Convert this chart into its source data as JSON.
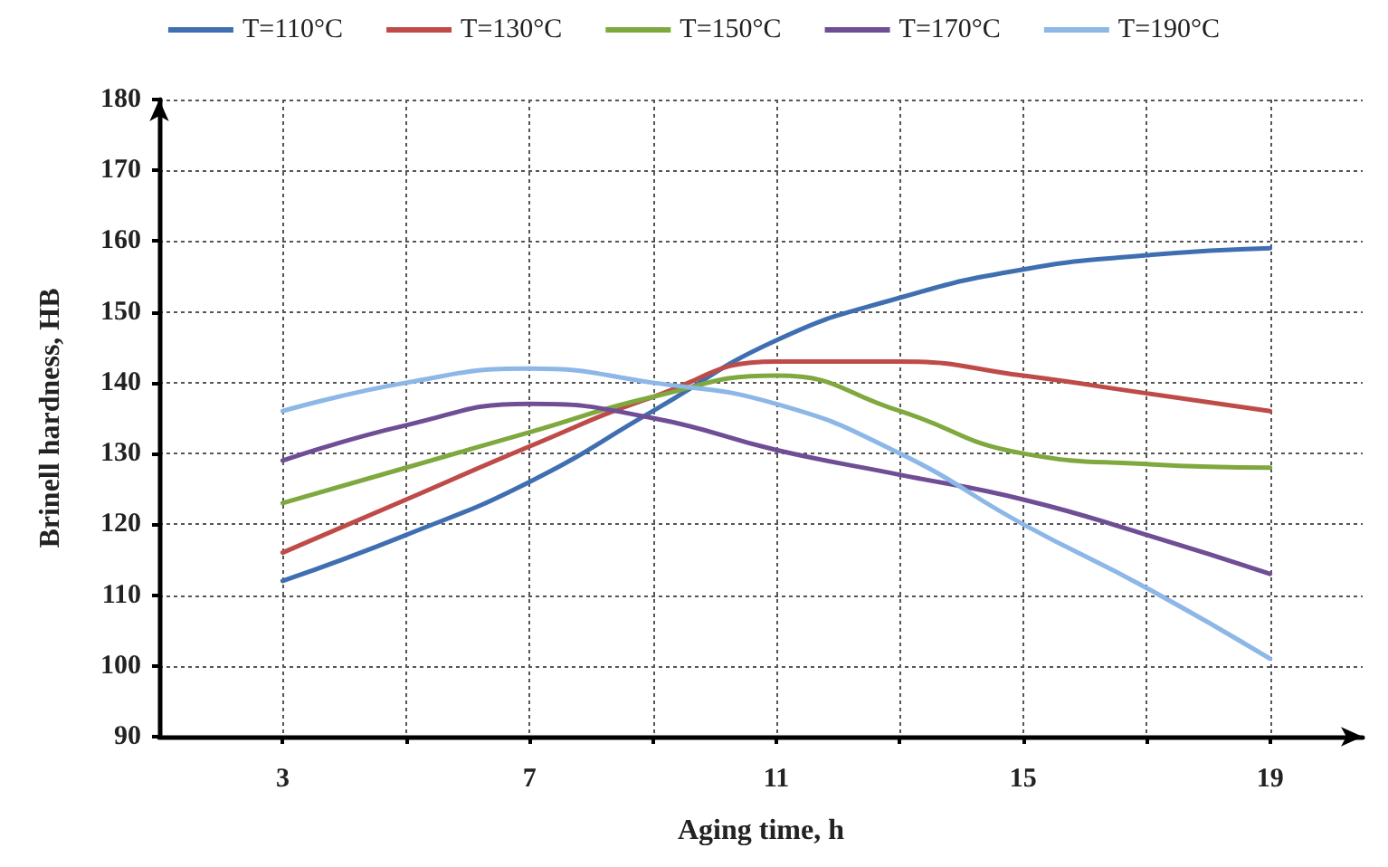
{
  "chart_data": {
    "type": "line",
    "xlabel": "Aging time, h",
    "ylabel": "Brinell hardness, HB",
    "x": [
      3,
      5,
      7,
      9,
      11,
      13,
      15,
      17,
      19
    ],
    "xlim": [
      1,
      20.5
    ],
    "xticks": [
      3,
      {
        "value": 5,
        "label": null
      },
      7,
      {
        "value": 9,
        "label": null
      },
      11,
      {
        "value": 13,
        "label": null
      },
      15,
      {
        "value": 17,
        "label": null
      },
      19
    ],
    "ylim": [
      90,
      180
    ],
    "yticks": [
      90,
      100,
      110,
      120,
      130,
      140,
      150,
      160,
      170,
      180
    ],
    "grid": true,
    "legend": "top",
    "marker": "none",
    "line_style": "solid",
    "series": [
      {
        "name": "T=110°C",
        "color": "#3f6fb0",
        "values": [
          112,
          118.5,
          126,
          136,
          146,
          152,
          156,
          158,
          159
        ]
      },
      {
        "name": "T=130°C",
        "color": "#be4b48",
        "values": [
          116,
          123.5,
          131,
          138,
          143,
          143,
          141,
          138.5,
          136
        ]
      },
      {
        "name": "T=150°C",
        "color": "#7fa83f",
        "values": [
          123,
          128,
          133,
          138,
          141,
          136,
          130,
          128.5,
          128
        ]
      },
      {
        "name": "T=170°C",
        "color": "#6f4e95",
        "values": [
          129,
          134,
          137,
          135,
          130.5,
          127,
          123.5,
          118.5,
          113
        ]
      },
      {
        "name": "T=190°C",
        "color": "#8cb7e6",
        "values": [
          136,
          140,
          142,
          140,
          137,
          130,
          120,
          111,
          101
        ]
      }
    ]
  }
}
